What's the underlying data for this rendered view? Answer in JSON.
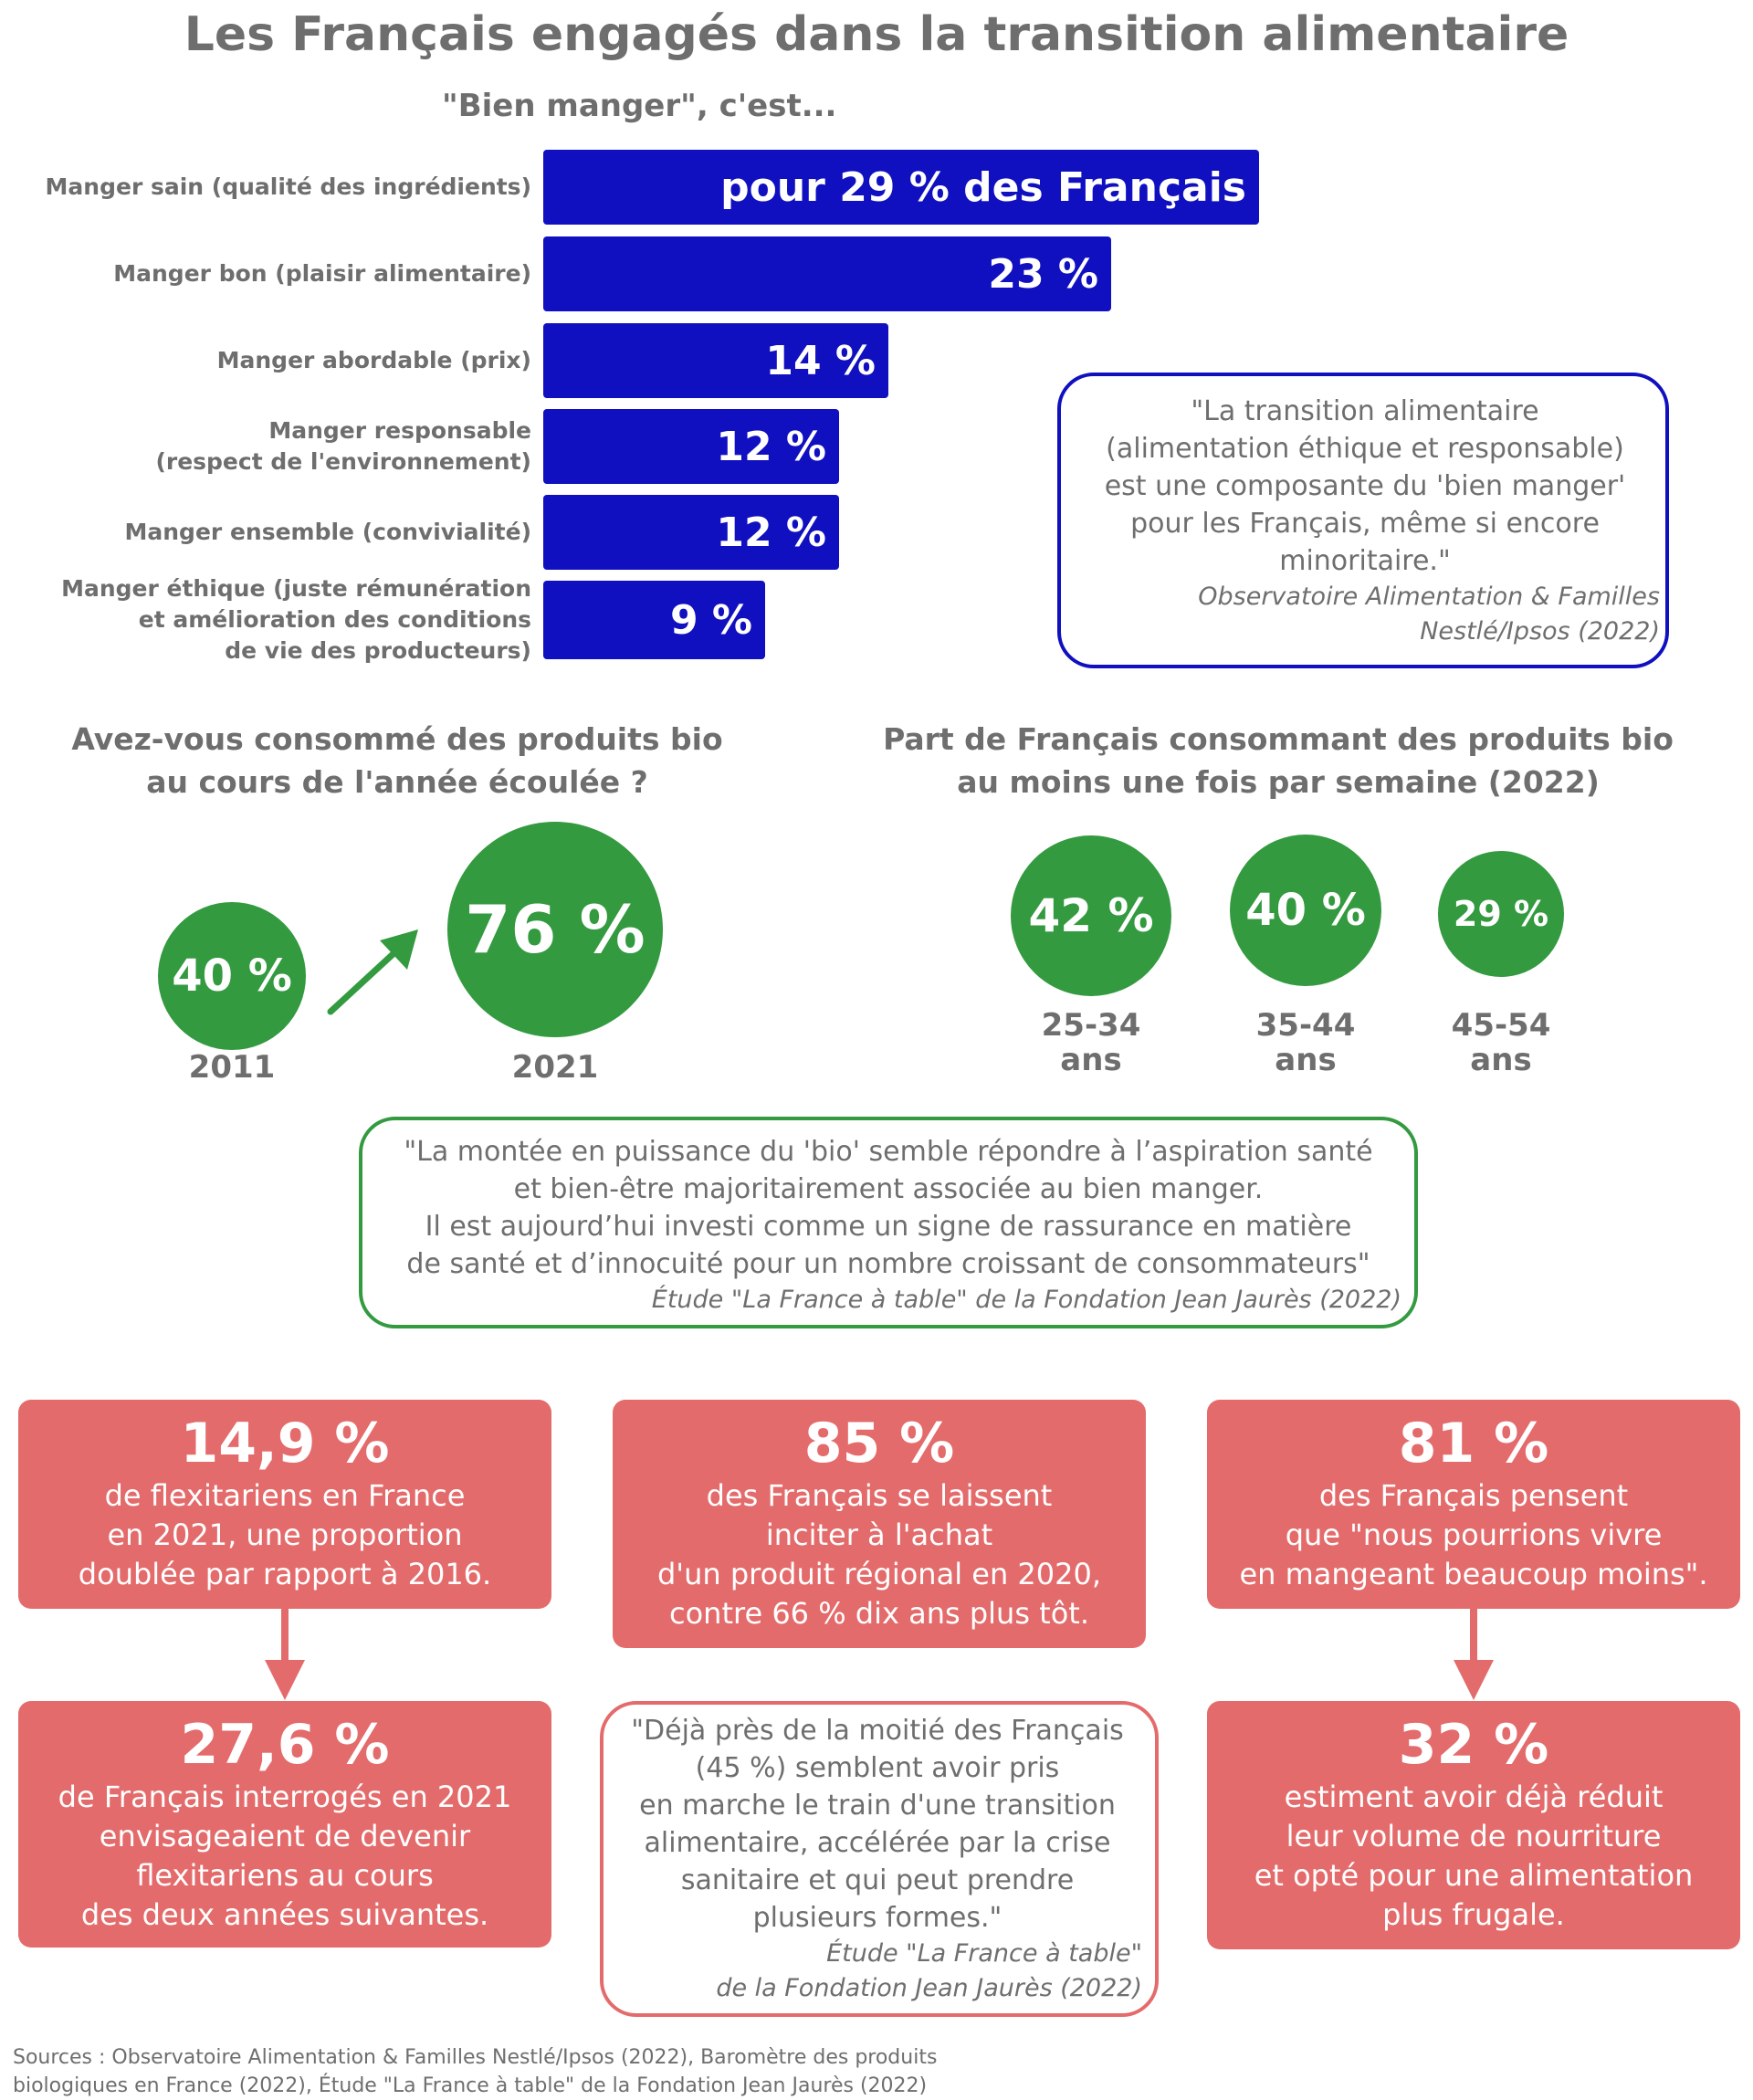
{
  "title": "Les Français engagés dans la transition alimentaire",
  "colors": {
    "blue": "#1010c0",
    "green": "#339a3f",
    "red": "#e46b6b",
    "text": "#6e6e6e"
  },
  "chart_data": [
    {
      "type": "bar",
      "title": "\"Bien manger\", c'est...",
      "categories": [
        "Manger sain (qualité des ingrédients)",
        "Manger bon (plaisir alimentaire)",
        "Manger abordable (prix)",
        "Manger responsable\n(respect de l'environnement)",
        "Manger ensemble (convivialité)",
        "Manger éthique (juste rémunération\net amélioration des conditions\nde vie des producteurs)"
      ],
      "values": [
        29,
        23,
        14,
        12,
        12,
        9
      ],
      "value_labels": [
        "pour 29 % des Français",
        "23 %",
        "14 %",
        "12 %",
        "12 %",
        "9 %"
      ],
      "orientation": "horizontal",
      "unit": "%"
    },
    {
      "type": "bubble",
      "title": "Avez-vous consommé des produits bio\nau cours de l'année écoulée ?",
      "categories": [
        "2011",
        "2021"
      ],
      "values": [
        40,
        76
      ],
      "value_labels": [
        "40 %",
        "76 %"
      ],
      "unit": "%"
    },
    {
      "type": "bubble",
      "title": "Part de Français consommant des produits bio\nau moins une fois par semaine (2022)",
      "categories": [
        "25-34\nans",
        "35-44\nans",
        "45-54\nans"
      ],
      "values": [
        42,
        40,
        29
      ],
      "value_labels": [
        "42 %",
        "40 %",
        "29 %"
      ],
      "unit": "%"
    }
  ],
  "quotes": {
    "q1": {
      "text": "\"La transition alimentaire\n(alimentation éthique et responsable)\nest une composante du 'bien manger'\npour les Français, même si encore\nminoritaire.\"",
      "source": "Observatoire Alimentation & Familles\nNestlé/Ipsos (2022)"
    },
    "q2": {
      "text": "\"La montée en puissance du 'bio' semble répondre à l’aspiration santé\net bien-être majoritairement associée au bien manger.\nIl est aujourd’hui investi comme un signe de rassurance en matière\nde santé et d’innocuité pour un nombre croissant de consommateurs\"",
      "source": "Étude \"La France à table\" de la Fondation Jean Jaurès (2022)"
    },
    "q3": {
      "text": "\"Déjà près de la moitié des Français\n(45 %) semblent avoir pris\nen marche le train d'une transition\nalimentaire, accélérée par la crise\nsanitaire et qui peut prendre\nplusieurs formes.\"",
      "source": "Étude \"La France à table\"\nde la Fondation Jean Jaurès (2022)"
    }
  },
  "cards": {
    "c1": {
      "value": "14,9 %",
      "text": "de flexitariens en France\nen 2021, une proportion\ndoublée par rapport à 2016."
    },
    "c2": {
      "value": "27,6 %",
      "text": "de Français interrogés en 2021\nenvisageaient de devenir\nflexitariens au cours\ndes deux années suivantes."
    },
    "c3": {
      "value": "85 %",
      "text": "des Français se laissent\ninciter à l'achat\nd'un produit régional en 2020,\ncontre 66 % dix ans plus tôt."
    },
    "c4": {
      "value": "81 %",
      "text": "des Français pensent\nque \"nous pourrions vivre\nen mangeant beaucoup moins\"."
    },
    "c5": {
      "value": "32 %",
      "text": "estiment avoir déjà réduit\nleur volume de nourriture\net opté pour une alimentation\nplus frugale."
    }
  },
  "sources": "Sources : Observatoire Alimentation & Familles Nestlé/Ipsos (2022), Baromètre des produits\nbiologiques en France (2022), Étude \"La France à table\" de la Fondation Jean Jaurès (2022)"
}
